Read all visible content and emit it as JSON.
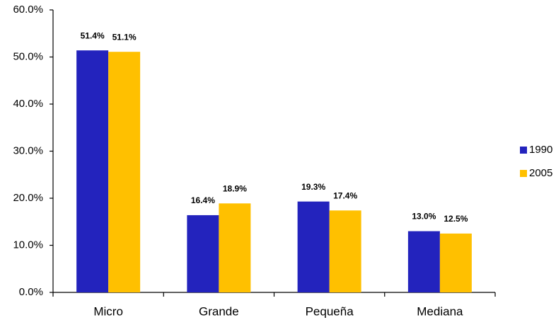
{
  "chart_data": {
    "type": "grouped-bar",
    "categories": [
      "Micro",
      "Grande",
      "Pequeña",
      "Mediana"
    ],
    "series": [
      {
        "name": "1990",
        "color": "#2323bd",
        "values": [
          51.4,
          16.4,
          19.3,
          13.0
        ],
        "value_labels": [
          "51.4%",
          "16.4%",
          "19.3%",
          "13.0%"
        ]
      },
      {
        "name": "2005",
        "color": "#ffc000",
        "values": [
          51.1,
          18.9,
          17.4,
          12.5
        ],
        "value_labels": [
          "51.1%",
          "18.9%",
          "17.4%",
          "12.5%"
        ]
      }
    ],
    "ylim": [
      0,
      60
    ],
    "yticks": [
      {
        "value": 0,
        "label": "0.0%"
      },
      {
        "value": 10,
        "label": "10.0%"
      },
      {
        "value": 20,
        "label": "20.0%"
      },
      {
        "value": 30,
        "label": "30.0%"
      },
      {
        "value": 40,
        "label": "40.0%"
      },
      {
        "value": 50,
        "label": "50.0%"
      },
      {
        "value": 60,
        "label": "60.0%"
      }
    ],
    "grid": false,
    "legend": "right"
  }
}
